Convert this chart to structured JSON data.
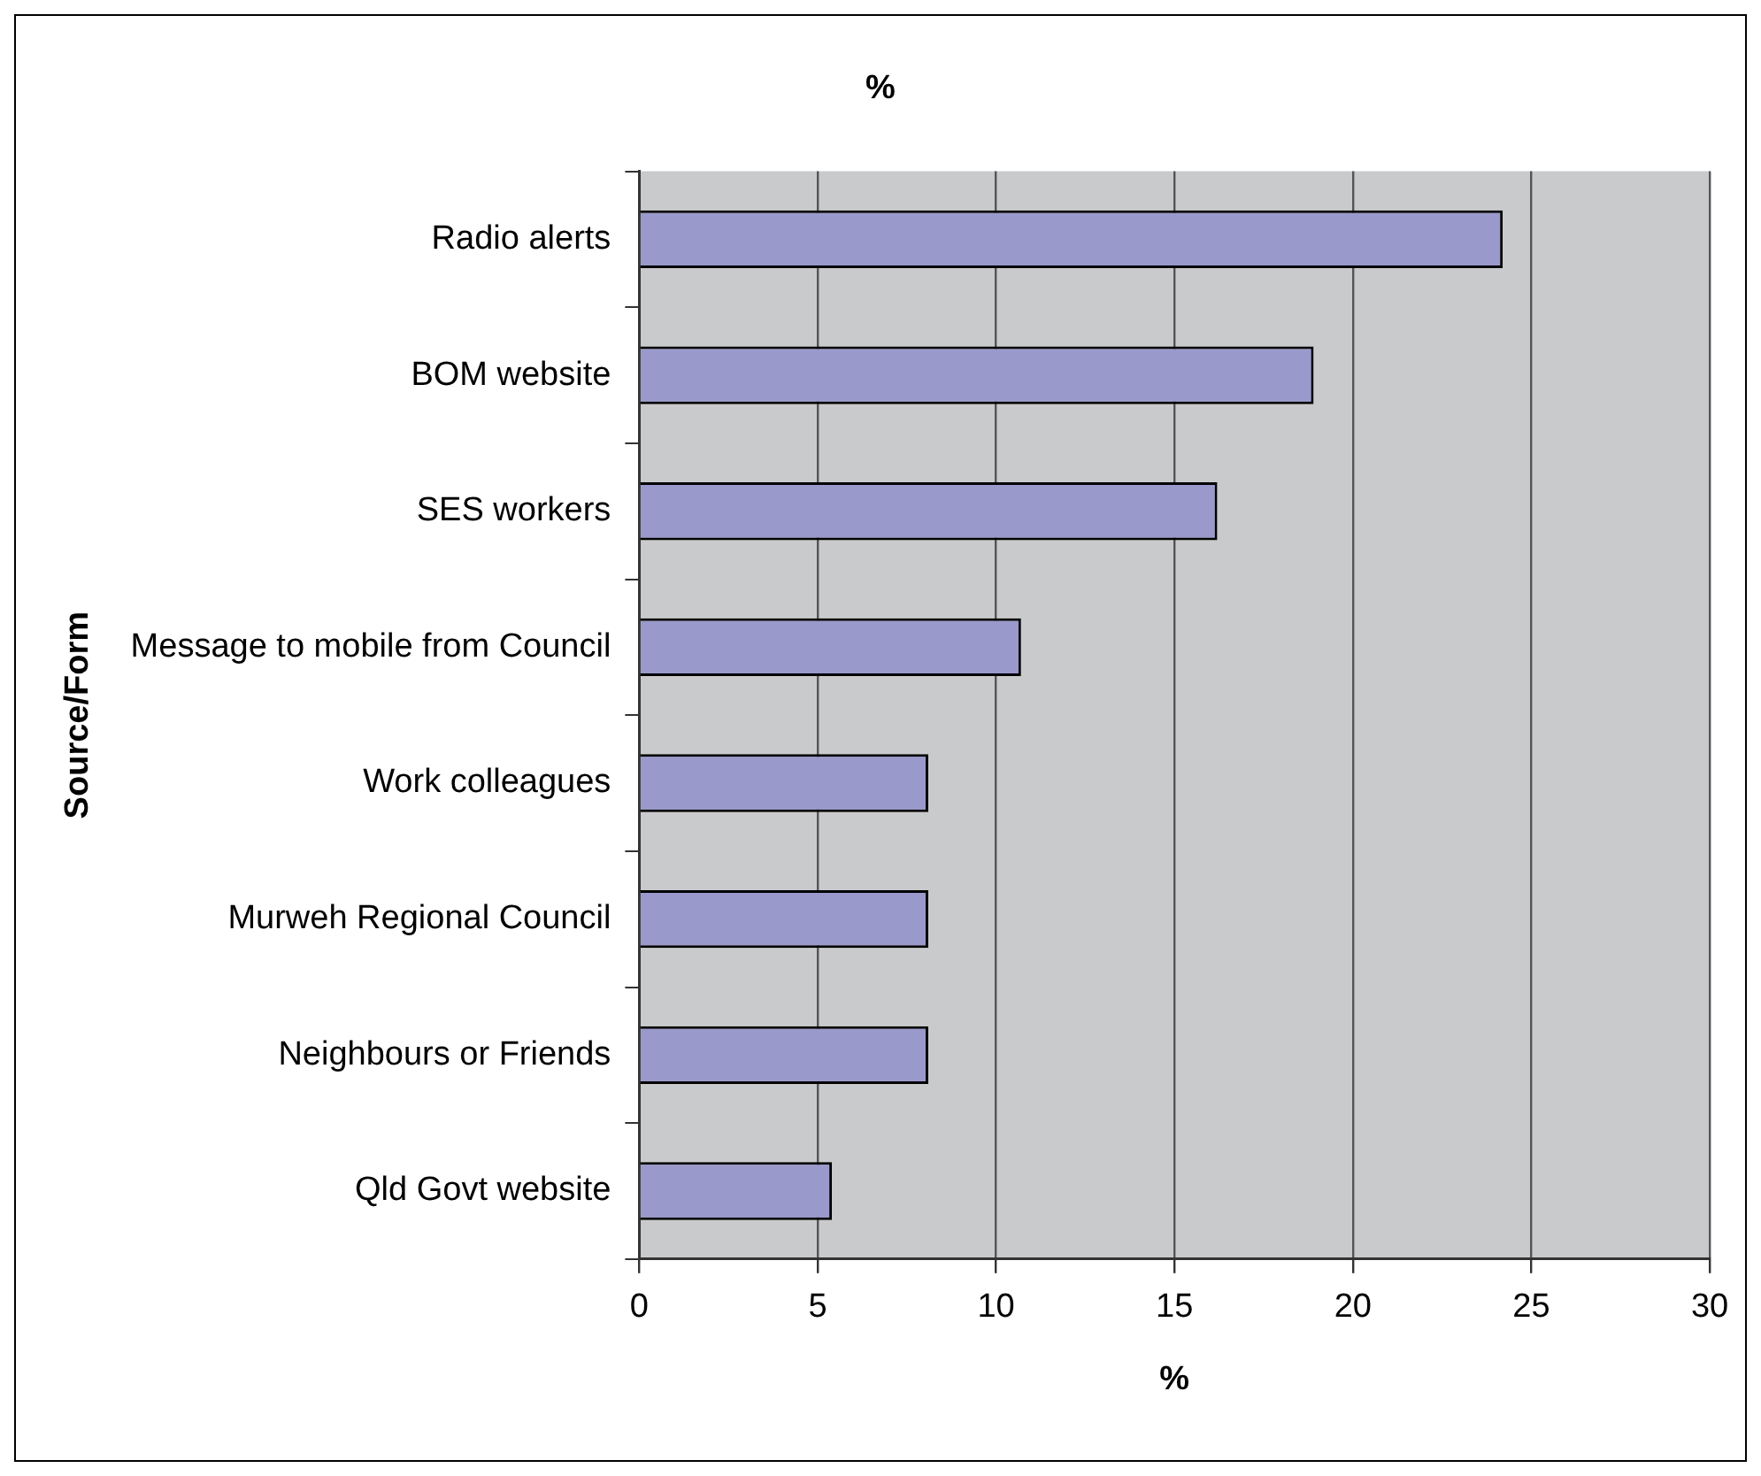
{
  "chart_data": {
    "type": "bar",
    "orientation": "horizontal",
    "title": "%",
    "xlabel": "%",
    "ylabel": "Source/Form",
    "categories": [
      "Radio alerts",
      "BOM website",
      "SES workers",
      "Message to mobile from Council",
      "Work colleagues",
      "Murweh Regional Council",
      "Neighbours or Friends",
      "Qld Govt website"
    ],
    "values": [
      24.2,
      18.9,
      16.2,
      10.7,
      8.1,
      8.1,
      8.1,
      5.4
    ],
    "color": "#9999cc",
    "xlim": [
      0,
      30
    ],
    "xticks": [
      0,
      5,
      10,
      15,
      20,
      25,
      30
    ],
    "grid": "x",
    "legend": false
  }
}
